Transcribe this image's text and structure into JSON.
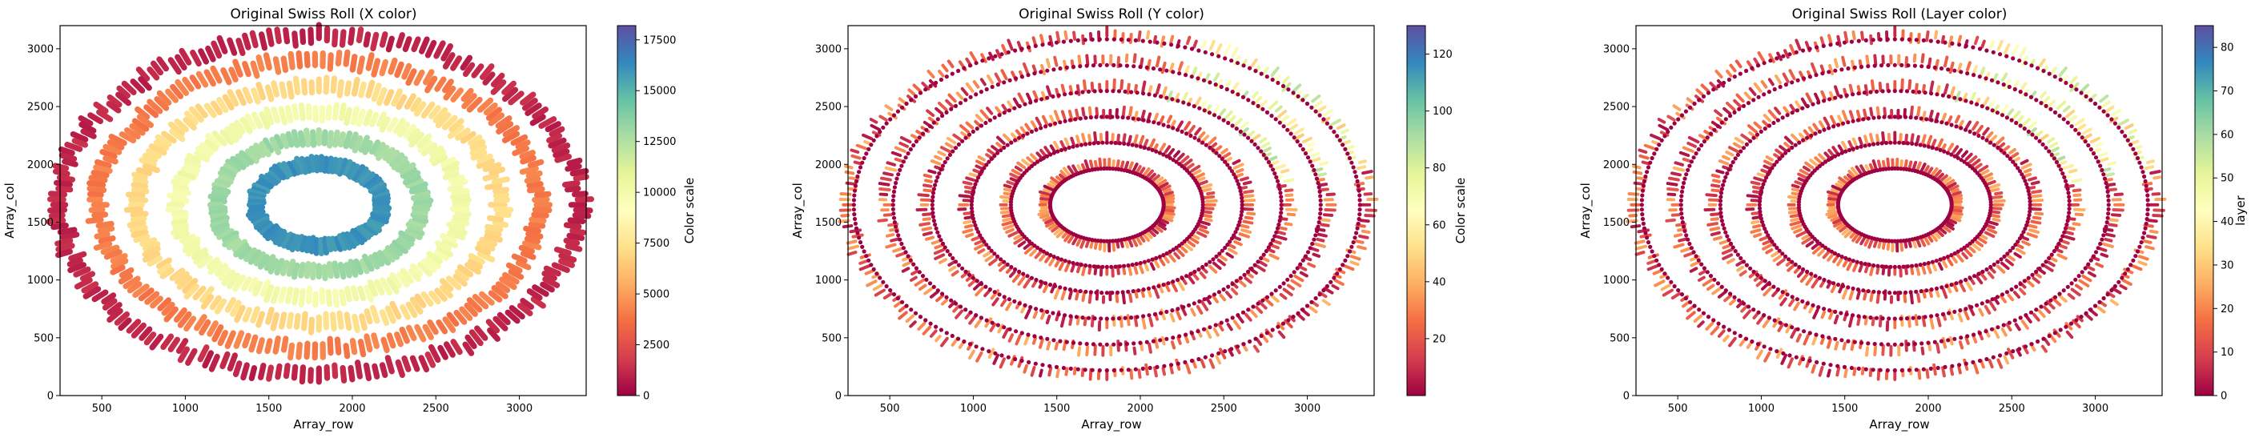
{
  "figure": {
    "panels": 3
  },
  "chart_data": [
    {
      "type": "scatter",
      "title": "Original Swiss Roll (X color)",
      "xlabel": "Array_row",
      "ylabel": "Array_col",
      "xlim": [
        250,
        3400
      ],
      "ylim": [
        0,
        3200
      ],
      "xticks": [
        "500",
        "1000",
        "1500",
        "2000",
        "2500",
        "3000"
      ],
      "yticks": [
        "0",
        "500",
        "1000",
        "1500",
        "2000",
        "2500",
        "3000"
      ],
      "colorbar": {
        "label": "Color scale",
        "range": [
          0,
          18200
        ],
        "ticks": [
          "0",
          "2500",
          "5000",
          "7500",
          "10000",
          "12500",
          "15000",
          "17500"
        ],
        "colormap": "Spectral"
      },
      "color_mode": "x_by_ring"
    },
    {
      "type": "scatter",
      "title": "Original Swiss Roll (Y color)",
      "xlabel": "Array_row",
      "ylabel": "Array_col",
      "xlim": [
        250,
        3400
      ],
      "ylim": [
        0,
        3200
      ],
      "xticks": [
        "500",
        "1000",
        "1500",
        "2000",
        "2500",
        "3000"
      ],
      "yticks": [
        "0",
        "500",
        "1000",
        "1500",
        "2000",
        "2500",
        "3000"
      ],
      "colorbar": {
        "label": "Color scale",
        "range": [
          0,
          130
        ],
        "ticks": [
          "20",
          "40",
          "60",
          "80",
          "100",
          "120"
        ],
        "colormap": "Spectral"
      },
      "color_mode": "y_within_band"
    },
    {
      "type": "scatter",
      "title": "Original Swiss Roll (Layer color)",
      "xlabel": "Array_row",
      "ylabel": "Array_col",
      "xlim": [
        250,
        3400
      ],
      "ylim": [
        0,
        3200
      ],
      "xticks": [
        "500",
        "1000",
        "1500",
        "2000",
        "2500",
        "3000"
      ],
      "yticks": [
        "0",
        "500",
        "1000",
        "1500",
        "2000",
        "2500",
        "3000"
      ],
      "colorbar": {
        "label": "layer",
        "range": [
          0,
          85
        ],
        "ticks": [
          "0",
          "10",
          "20",
          "30",
          "40",
          "50",
          "60",
          "70",
          "80"
        ],
        "colormap": "Spectral"
      },
      "color_mode": "layer_within_band"
    }
  ],
  "colors": {
    "spectral_stops": [
      "#9e0142",
      "#d53e4f",
      "#f46d43",
      "#fdae61",
      "#fee08b",
      "#ffffbf",
      "#e6f598",
      "#abdda4",
      "#66c2a5",
      "#3288bd",
      "#5e4fa2"
    ]
  }
}
